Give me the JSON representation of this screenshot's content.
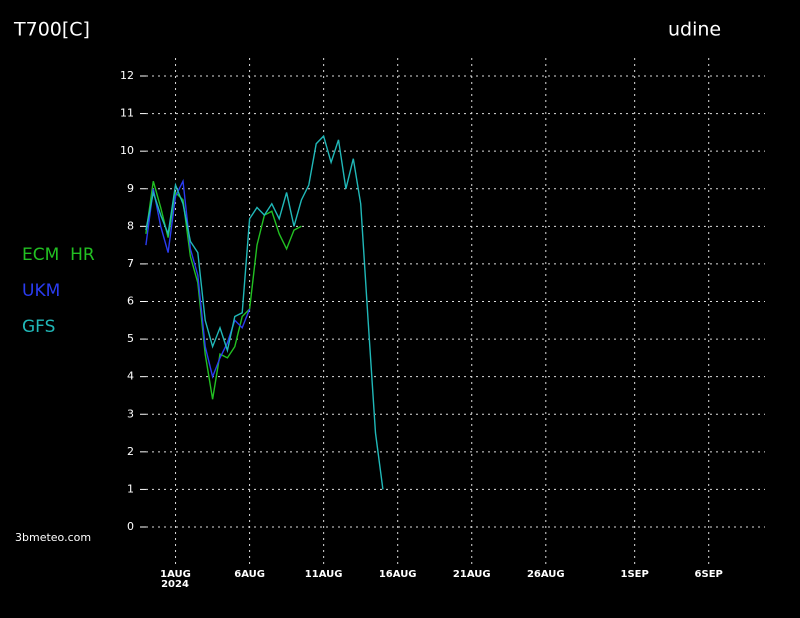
{
  "chart_data": {
    "type": "line",
    "title": "T700[C]",
    "subtitle": "udine",
    "source": "3bmeteo.com",
    "year_label": "2024",
    "xlim": [
      -1.4,
      40.8
    ],
    "ylim": [
      0,
      12
    ],
    "yticks": [
      0,
      1,
      2,
      3,
      4,
      5,
      6,
      7,
      8,
      9,
      10,
      11,
      12
    ],
    "xticks": [
      {
        "value": 1,
        "label": "1AUG"
      },
      {
        "value": 6,
        "label": "6AUG"
      },
      {
        "value": 11,
        "label": "11AUG"
      },
      {
        "value": 16,
        "label": "16AUG"
      },
      {
        "value": 21,
        "label": "21AUG"
      },
      {
        "value": 26,
        "label": "26AUG"
      },
      {
        "value": 32,
        "label": "1SEP"
      },
      {
        "value": 37,
        "label": "6SEP"
      }
    ],
    "grid": true,
    "series": [
      {
        "name": "ECM  HR",
        "color": "#22c022",
        "x": [
          -1,
          -0.5,
          0,
          0.5,
          1,
          1.5,
          2,
          2.5,
          3,
          3.5,
          4,
          4.5,
          5,
          5.5,
          6,
          6.5,
          7,
          7.5,
          8,
          8.5,
          9,
          9.5
        ],
        "values": [
          7.8,
          9.2,
          8.5,
          7.7,
          8.9,
          8.7,
          7.2,
          6.5,
          4.6,
          3.4,
          4.6,
          4.5,
          4.8,
          5.6,
          5.8,
          7.5,
          8.3,
          8.4,
          7.8,
          7.4,
          7.9,
          8.0
        ]
      },
      {
        "name": "UKM",
        "color": "#2a3cf0",
        "x": [
          -1,
          -0.5,
          0,
          0.5,
          1,
          1.5,
          2,
          2.5,
          3,
          3.5,
          4,
          4.5,
          5,
          5.5,
          6
        ],
        "values": [
          7.5,
          9.0,
          8.0,
          7.3,
          8.8,
          9.2,
          7.4,
          6.7,
          4.8,
          4.0,
          4.5,
          4.9,
          5.5,
          5.3,
          5.8
        ]
      },
      {
        "name": "GFS",
        "color": "#20b8b8",
        "x": [
          -1,
          -0.5,
          0,
          0.5,
          1,
          1.5,
          2,
          2.5,
          3,
          3.5,
          4,
          4.5,
          5,
          5.5,
          6,
          6.5,
          7,
          7.5,
          8,
          8.5,
          9,
          9.5,
          10,
          10.5,
          11,
          11.5,
          12,
          12.5,
          13,
          13.5,
          14,
          14.5,
          15
        ],
        "values": [
          7.9,
          8.9,
          8.3,
          7.8,
          9.1,
          8.6,
          7.6,
          7.3,
          5.5,
          4.8,
          5.3,
          4.7,
          5.6,
          5.7,
          8.2,
          8.5,
          8.3,
          8.6,
          8.2,
          8.9,
          8.0,
          8.7,
          9.1,
          10.2,
          10.4,
          9.7,
          10.3,
          9.0,
          9.8,
          8.6,
          5.5,
          2.5,
          1.0
        ]
      }
    ]
  }
}
